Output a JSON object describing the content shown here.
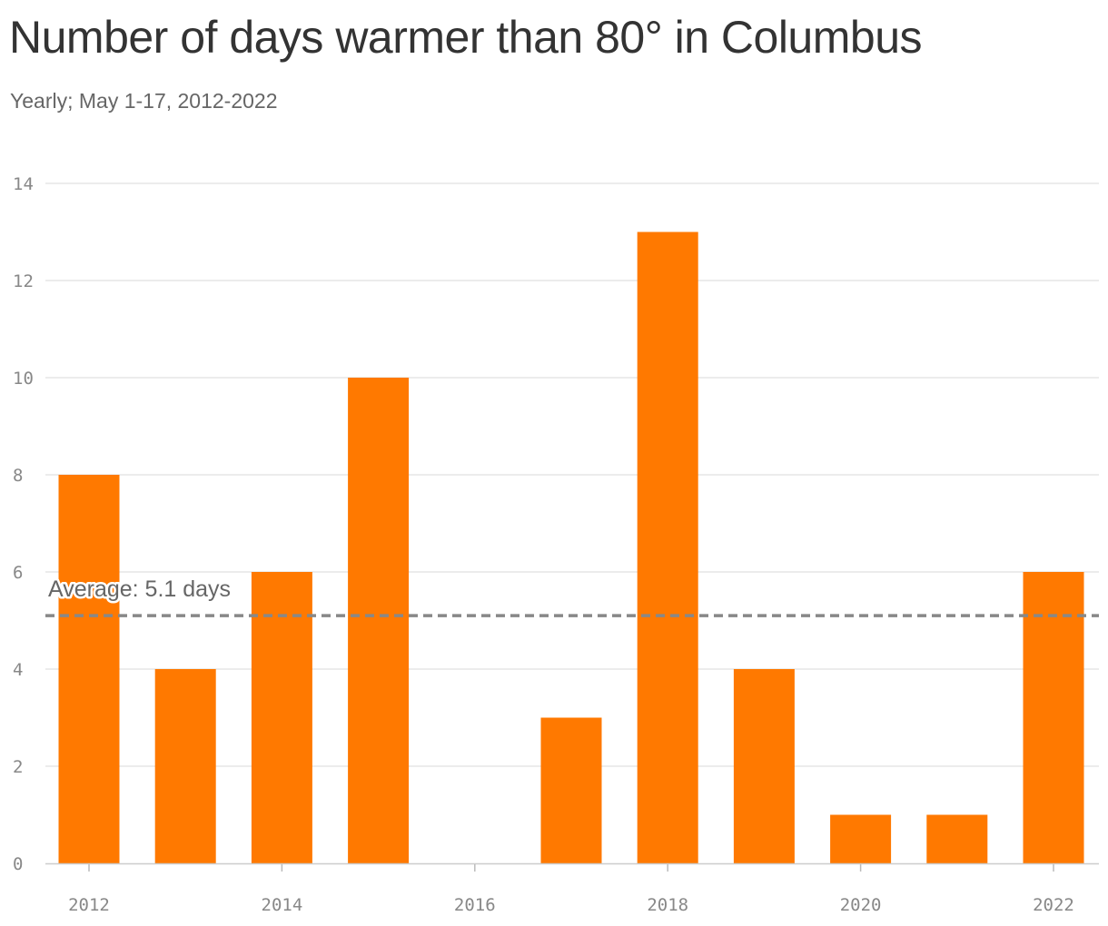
{
  "header": {
    "title": "Number of days warmer than 80° in Columbus",
    "subtitle": "Yearly; May 1-17, 2012-2022"
  },
  "colors": {
    "bar": "#ff7900",
    "grid": "#e5e5e5",
    "average_line": "#888888",
    "text_title": "#333333",
    "text_muted": "#666666"
  },
  "chart_data": {
    "type": "bar",
    "title": "Number of days warmer than 80° in Columbus",
    "subtitle": "Yearly; May 1-17, 2012-2022",
    "categories": [
      2012,
      2013,
      2014,
      2015,
      2016,
      2017,
      2018,
      2019,
      2020,
      2021,
      2022
    ],
    "values": [
      8,
      4,
      6,
      10,
      0,
      3,
      13,
      4,
      1,
      1,
      6
    ],
    "xlabel": "",
    "ylabel": "",
    "ylim": [
      0,
      14
    ],
    "y_ticks": [
      0,
      2,
      4,
      6,
      8,
      10,
      12,
      14
    ],
    "x_ticks": [
      2012,
      2014,
      2016,
      2018,
      2020,
      2022
    ],
    "grid": true,
    "reference_line": {
      "value": 5.1,
      "label": "Average: 5.1 days",
      "style": "dashed"
    }
  }
}
